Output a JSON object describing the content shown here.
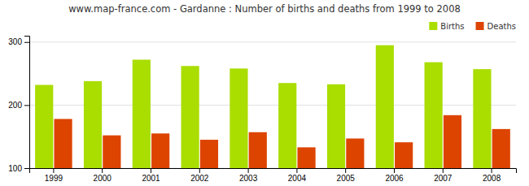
{
  "chart_data": {
    "type": "bar",
    "title": "www.map-france.com - Gardanne : Number of births and deaths from 1999 to 2008",
    "categories": [
      "1999",
      "2000",
      "2001",
      "2002",
      "2003",
      "2004",
      "2005",
      "2006",
      "2007",
      "2008"
    ],
    "series": [
      {
        "name": "Births",
        "color": "#aadd00",
        "values": [
          232,
          238,
          272,
          262,
          258,
          235,
          233,
          295,
          268,
          257
        ]
      },
      {
        "name": "Deaths",
        "color": "#dd4400",
        "values": [
          178,
          152,
          155,
          145,
          157,
          133,
          147,
          141,
          184,
          162
        ]
      }
    ],
    "ylim": [
      100,
      310
    ],
    "yticks": [
      100,
      200,
      300
    ],
    "grid": true,
    "legend": "upper right"
  }
}
